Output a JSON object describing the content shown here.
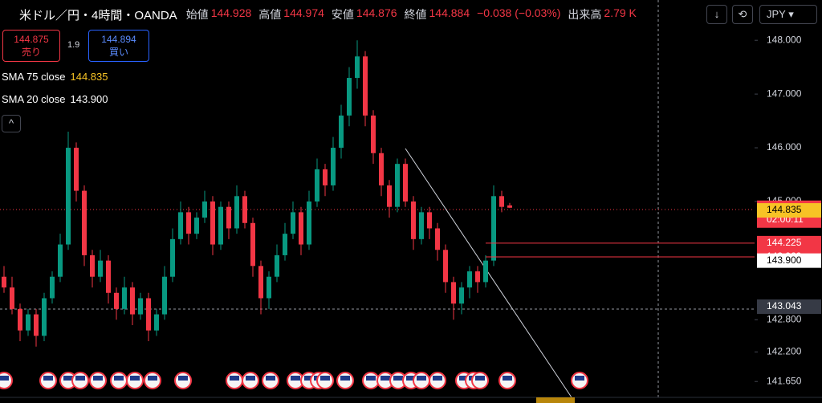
{
  "header": {
    "symbol": "米ドル／円・4時間・OANDA",
    "open_label": "始値",
    "open": "144.928",
    "high_label": "高値",
    "high": "144.974",
    "low_label": "安値",
    "low": "144.876",
    "close_label": "終値",
    "close": "144.884",
    "change": "−0.038 (−0.03%)",
    "volume_label": "出来高",
    "volume": "2.79 K",
    "currency": "JPY"
  },
  "trade": {
    "sell_price": "144.875",
    "sell_label": "売り",
    "spread": "1.9",
    "buy_price": "144.894",
    "buy_label": "買い"
  },
  "indicators": [
    {
      "name": "SMA 75 close",
      "value": "144.835"
    },
    {
      "name": "SMA 20 close",
      "value": "143.900"
    }
  ],
  "chart_data": {
    "type": "candlestick",
    "ylim": [
      141.25,
      148.75
    ],
    "yticks": [
      {
        "value": 148,
        "label": "148.000"
      },
      {
        "value": 147,
        "label": "147.000"
      },
      {
        "value": 146,
        "label": "146.000"
      },
      {
        "value": 145,
        "label": "145.000"
      },
      {
        "value": 142.8,
        "label": "142.800"
      },
      {
        "value": 142.2,
        "label": "142.200"
      },
      {
        "value": 141.65,
        "label": "141.650"
      }
    ],
    "up_color": "#089981",
    "down_color": "#f23645",
    "open": [
      143.6,
      143.4,
      143.0,
      142.6,
      142.9,
      142.5,
      143.2,
      143.6,
      144.2,
      146.0,
      145.2,
      144.0,
      143.6,
      143.9,
      143.3,
      143.0,
      143.4,
      142.9,
      143.2,
      142.6,
      142.9,
      143.6,
      144.3,
      144.8,
      144.4,
      144.7,
      145.0,
      144.2,
      144.9,
      144.5,
      145.1,
      144.6,
      143.8,
      143.2,
      143.6,
      144.0,
      144.4,
      144.8,
      144.2,
      145.0,
      145.6,
      145.3,
      146.0,
      146.6,
      147.3,
      147.7,
      146.6,
      145.9,
      145.3,
      144.9,
      145.7,
      145.0,
      144.3,
      144.8,
      144.5,
      144.1,
      143.5,
      143.1,
      143.4,
      143.7,
      143.5,
      143.9,
      145.1,
      144.928
    ],
    "high": [
      143.8,
      143.6,
      143.1,
      143.0,
      143.0,
      143.3,
      143.7,
      144.4,
      146.3,
      146.1,
      145.3,
      144.1,
      144.1,
      144.0,
      143.4,
      143.6,
      143.5,
      143.3,
      143.3,
      143.0,
      143.8,
      144.5,
      145.0,
      144.9,
      144.8,
      145.2,
      145.1,
      145.0,
      145.0,
      145.3,
      145.2,
      144.7,
      143.9,
      143.7,
      144.2,
      144.6,
      145.0,
      144.9,
      145.2,
      145.8,
      145.7,
      146.2,
      146.8,
      147.5,
      148.0,
      147.8,
      146.7,
      146.0,
      145.4,
      145.8,
      145.8,
      145.1,
      144.9,
      144.9,
      144.6,
      144.2,
      143.6,
      143.5,
      143.8,
      143.8,
      144.0,
      145.3,
      145.2,
      144.974
    ],
    "low": [
      143.3,
      142.9,
      142.4,
      142.5,
      142.3,
      142.4,
      143.1,
      143.5,
      144.1,
      145.0,
      143.8,
      143.4,
      143.5,
      143.1,
      142.8,
      142.9,
      142.7,
      142.8,
      142.4,
      142.5,
      142.8,
      143.5,
      144.2,
      144.2,
      144.3,
      144.6,
      144.0,
      144.1,
      144.3,
      144.4,
      144.5,
      143.6,
      142.9,
      143.0,
      143.5,
      143.9,
      144.3,
      144.0,
      144.1,
      144.9,
      145.1,
      145.2,
      145.8,
      146.4,
      147.1,
      146.4,
      145.7,
      145.1,
      144.7,
      144.8,
      144.9,
      144.1,
      144.2,
      144.3,
      143.9,
      143.3,
      142.8,
      142.9,
      143.2,
      143.3,
      143.4,
      143.8,
      144.8,
      144.876
    ],
    "close": [
      143.4,
      143.0,
      142.6,
      142.9,
      142.5,
      143.2,
      143.6,
      144.2,
      146.0,
      145.2,
      144.0,
      143.6,
      143.9,
      143.3,
      143.0,
      143.4,
      142.9,
      143.2,
      142.6,
      142.9,
      143.6,
      144.3,
      144.8,
      144.4,
      144.7,
      145.0,
      144.2,
      144.9,
      144.5,
      145.1,
      144.6,
      143.8,
      143.2,
      143.6,
      144.0,
      144.4,
      144.8,
      144.2,
      145.0,
      145.6,
      145.3,
      146.0,
      146.6,
      147.3,
      147.7,
      146.6,
      145.9,
      145.3,
      144.9,
      145.7,
      145.0,
      144.3,
      144.8,
      144.5,
      144.1,
      143.5,
      143.1,
      143.4,
      143.7,
      143.5,
      143.9,
      145.1,
      144.9,
      144.884
    ],
    "price_tags": [
      {
        "value": 144.884,
        "label": "144.884",
        "extra": "02:00:11",
        "color": "#f23645",
        "text_color": "#ffffff",
        "line": false
      },
      {
        "value": 144.835,
        "label": "144.835",
        "color": "#f7c325",
        "text_color": "#000000",
        "line": false
      },
      {
        "value": 144.225,
        "label": "144.225",
        "color": "#f23645",
        "text_color": "#ffffff",
        "line": true
      },
      {
        "value": 143.969,
        "label": "143.969",
        "color": "#f23645",
        "text_color": "#ffffff",
        "line": true
      },
      {
        "value": 143.9,
        "label": "143.900",
        "color": "#ffffff",
        "text_color": "#000000",
        "line": false
      },
      {
        "value": 143.043,
        "label": "143.043",
        "color": "#363a45",
        "text_color": "#ffffff",
        "line": false
      }
    ]
  }
}
